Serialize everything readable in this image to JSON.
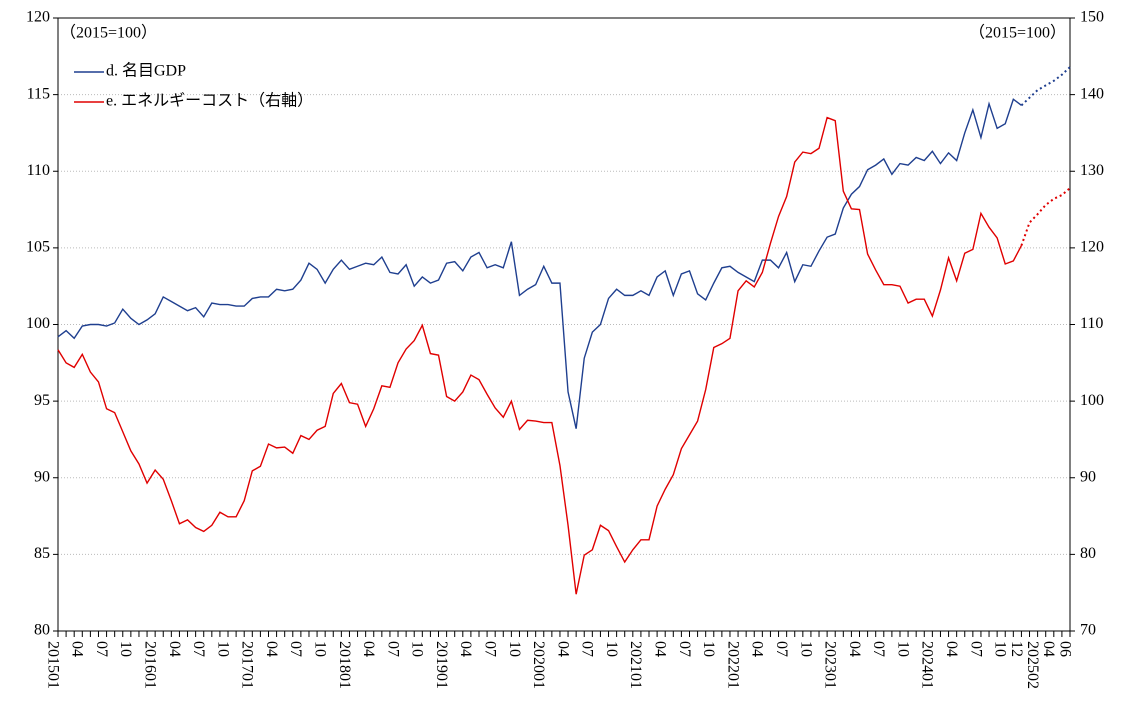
{
  "chart_data": {
    "type": "line",
    "unit_left": "（2015=100）",
    "unit_right": "（2015=100）",
    "categories": [
      "201501",
      null,
      null,
      "04",
      null,
      null,
      "07",
      null,
      null,
      "10",
      null,
      null,
      "201601",
      null,
      null,
      "04",
      null,
      null,
      "07",
      null,
      null,
      "10",
      null,
      null,
      "201701",
      null,
      null,
      "04",
      null,
      null,
      "07",
      null,
      null,
      "10",
      null,
      null,
      "201801",
      null,
      null,
      "04",
      null,
      null,
      "07",
      null,
      null,
      "10",
      null,
      null,
      "201901",
      null,
      null,
      "04",
      null,
      null,
      "07",
      null,
      null,
      "10",
      null,
      null,
      "202001",
      null,
      null,
      "04",
      null,
      null,
      "07",
      null,
      null,
      "10",
      null,
      null,
      "202101",
      null,
      null,
      "04",
      null,
      null,
      "07",
      null,
      null,
      "10",
      null,
      null,
      "202201",
      null,
      null,
      "04",
      null,
      null,
      "07",
      null,
      null,
      "10",
      null,
      null,
      "202301",
      null,
      null,
      "04",
      null,
      null,
      "07",
      null,
      null,
      "10",
      null,
      null,
      "202401",
      null,
      null,
      "04",
      null,
      null,
      "07",
      null,
      null,
      "10",
      null,
      "12",
      null,
      "202502",
      null,
      "04",
      null,
      "06"
    ],
    "series": [
      {
        "name": "d. 名目GDP",
        "color": "#1f3f8f",
        "dotted_from": 119,
        "values": [
          99.2,
          99.6,
          99.1,
          99.9,
          100.0,
          100.0,
          99.9,
          100.1,
          101.0,
          100.4,
          100.0,
          100.3,
          100.7,
          101.8,
          101.5,
          101.2,
          100.9,
          101.1,
          100.5,
          101.4,
          101.3,
          101.3,
          101.2,
          101.2,
          101.7,
          101.8,
          101.8,
          102.3,
          102.2,
          102.3,
          102.9,
          104.0,
          103.6,
          102.7,
          103.6,
          104.2,
          103.6,
          103.8,
          104.0,
          103.9,
          104.4,
          103.4,
          103.3,
          103.9,
          102.5,
          103.1,
          102.7,
          102.9,
          104.0,
          104.1,
          103.5,
          104.4,
          104.7,
          103.7,
          103.9,
          103.7,
          105.4,
          101.9,
          102.3,
          102.6,
          103.8,
          102.7,
          102.7,
          95.6,
          93.2,
          97.8,
          99.5,
          100.0,
          101.7,
          102.3,
          101.9,
          101.9,
          102.2,
          101.9,
          103.1,
          103.5,
          101.9,
          103.3,
          103.5,
          102.0,
          101.6,
          102.7,
          103.7,
          103.8,
          103.4,
          103.1,
          102.8,
          104.2,
          104.2,
          103.7,
          104.7,
          102.8,
          103.9,
          103.8,
          104.8,
          105.7,
          105.9,
          107.6,
          108.5,
          109.0,
          110.1,
          110.4,
          110.8,
          109.8,
          110.5,
          110.4,
          110.9,
          110.7,
          111.3,
          110.5,
          111.2,
          110.7,
          112.5,
          114.0,
          112.2,
          114.4,
          112.8,
          113.1,
          114.7,
          114.3,
          114.8,
          115.3,
          115.6,
          115.9,
          116.3,
          116.8
        ]
      },
      {
        "name": "e. エネルギーコスト（右軸）",
        "color": "#e00000",
        "axis": "y2",
        "dotted_from": 119,
        "values": [
          106.7,
          105.0,
          104.4,
          106.1,
          103.8,
          102.5,
          99.0,
          98.5,
          96.0,
          93.5,
          91.8,
          89.3,
          91.0,
          89.8,
          87.0,
          84.0,
          84.5,
          83.5,
          83.0,
          83.8,
          85.5,
          84.9,
          84.9,
          87.0,
          90.9,
          91.5,
          94.4,
          93.9,
          94.0,
          93.2,
          95.5,
          95.0,
          96.2,
          96.7,
          101.0,
          102.3,
          99.8,
          99.6,
          96.7,
          99.0,
          102.0,
          101.8,
          105.0,
          106.8,
          107.9,
          109.9,
          106.2,
          106.0,
          100.6,
          100.0,
          101.2,
          103.4,
          102.8,
          100.9,
          99.1,
          97.9,
          100.0,
          96.3,
          97.5,
          97.4,
          97.2,
          97.2,
          91.6,
          83.8,
          74.8,
          79.9,
          80.6,
          83.8,
          83.1,
          81.0,
          79.0,
          80.6,
          81.9,
          81.9,
          86.3,
          88.5,
          90.4,
          93.8,
          95.6,
          97.4,
          101.5,
          107.0,
          107.5,
          108.2,
          114.4,
          115.7,
          114.9,
          116.8,
          120.6,
          124.1,
          126.7,
          131.2,
          132.5,
          132.3,
          133.0,
          137.0,
          136.6,
          127.4,
          125.1,
          125.0,
          119.2,
          117.1,
          115.2,
          115.2,
          115.0,
          112.8,
          113.3,
          113.3,
          111.1,
          114.5,
          118.7,
          115.7,
          119.3,
          119.8,
          124.5,
          122.7,
          121.3,
          117.9,
          118.3,
          120.3,
          123.3,
          124.4,
          125.6,
          126.4,
          126.9,
          127.8
        ]
      }
    ],
    "ylim": [
      80,
      120
    ],
    "yticks": [
      80,
      85,
      90,
      95,
      100,
      105,
      110,
      115,
      120
    ],
    "y2lim": [
      70,
      150
    ],
    "y2ticks": [
      70,
      80,
      90,
      100,
      110,
      120,
      130,
      140,
      150
    ],
    "grid": true,
    "legend": "upper left"
  }
}
